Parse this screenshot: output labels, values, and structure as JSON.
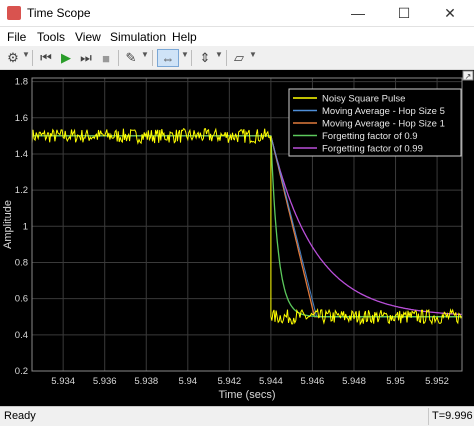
{
  "window": {
    "title": "Time Scope",
    "minimize": "—",
    "maximize": "☐",
    "close": "✕"
  },
  "menu": [
    "File",
    "Tools",
    "View",
    "Simulation",
    "Help"
  ],
  "toolbar": [
    {
      "name": "settings-icon",
      "glyph": "⚙"
    },
    {
      "name": "step-back-icon",
      "glyph": "⏮"
    },
    {
      "name": "run-icon",
      "glyph": "▶"
    },
    {
      "name": "step-forward-icon",
      "glyph": "⏭"
    },
    {
      "name": "stop-icon",
      "glyph": "■"
    },
    {
      "name": "highlight-icon",
      "glyph": "✎"
    },
    {
      "name": "zoom-icon",
      "glyph": "⇔"
    },
    {
      "name": "scale-icon",
      "glyph": "⇕"
    },
    {
      "name": "measurements-icon",
      "glyph": "▱"
    }
  ],
  "status": {
    "left": "Ready",
    "right": "T=9.996"
  },
  "colors": {
    "signal": "#ffff00",
    "hop5": "#4f8fd9",
    "hop1": "#e07a3c",
    "ff09": "#5cc95c",
    "ff099": "#b94fd9"
  },
  "chart_data": {
    "type": "line",
    "ylabel": "Amplitude",
    "xlabel": "Time (secs)",
    "xlim": [
      5.9325,
      5.9532
    ],
    "ylim": [
      0.2,
      1.82
    ],
    "xticks": [
      "5.934",
      "5.936",
      "5.938",
      "5.94",
      "5.942",
      "5.944",
      "5.946",
      "5.948",
      "5.95",
      "5.952"
    ],
    "xtick_values": [
      5.934,
      5.936,
      5.938,
      5.94,
      5.942,
      5.944,
      5.946,
      5.948,
      5.95,
      5.952
    ],
    "yticks": [
      "0.2",
      "0.4",
      "0.6",
      "0.8",
      "1",
      "1.2",
      "1.4",
      "1.6",
      "1.8"
    ],
    "ytick_values": [
      0.2,
      0.4,
      0.6,
      0.8,
      1,
      1.2,
      1.4,
      1.6,
      1.8
    ],
    "grid": true,
    "legend_position": "top-right",
    "step_time": 5.944,
    "high_level": 1.5,
    "low_level": 0.5,
    "series": [
      {
        "name": "Noisy Square Pulse"
      },
      {
        "name": "Moving Average - Hop Size 5"
      },
      {
        "name": "Moving Average - Hop Size 1"
      },
      {
        "name": "Forgetting factor of 0.9"
      },
      {
        "name": "Forgetting factor of 0.99"
      }
    ]
  }
}
